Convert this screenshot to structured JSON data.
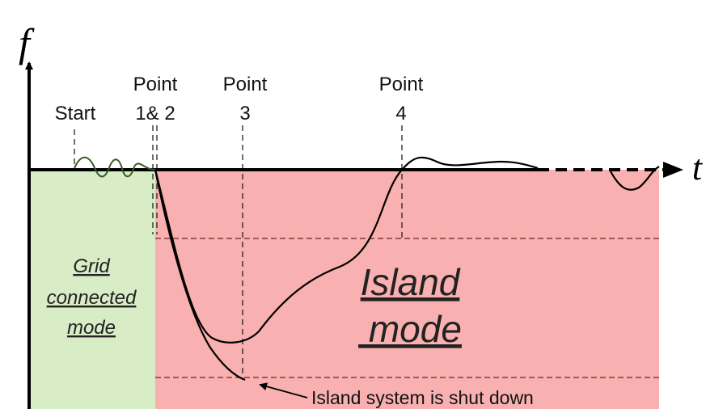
{
  "axes": {
    "y_label": "f",
    "x_label": "t"
  },
  "markers": [
    {
      "lines": [
        "Start"
      ]
    },
    {
      "lines": [
        "Point",
        "1& 2"
      ]
    },
    {
      "lines": [
        "Point",
        "3"
      ]
    },
    {
      "lines": [
        "Point",
        "4"
      ]
    }
  ],
  "regions": [
    {
      "lines": [
        "Grid",
        "connected",
        "mode"
      ]
    },
    {
      "lines": [
        "Island",
        " mode"
      ]
    }
  ],
  "annotation": "Island system is shut down"
}
